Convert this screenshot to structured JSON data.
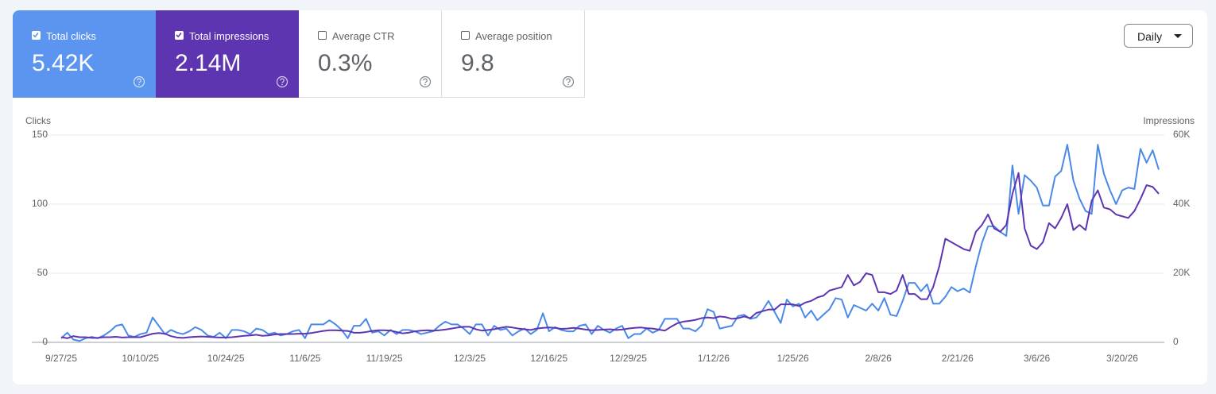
{
  "metrics": [
    {
      "value": "5.42K",
      "checked": true,
      "color": "#5b95f0"
    },
    {
      "value": "2.14M",
      "checked": true,
      "color": "#5e35b1"
    },
    {
      "label": "Average CTR",
      "value": "0.3%",
      "checked": false
    },
    {
      "label": "Average position",
      "value": "9.8",
      "checked": false
    }
  ],
  "granularity": "Daily",
  "chart_data": {
    "type": "line",
    "y_label": "Clicks",
    "y2_label": "Impressions",
    "grid": true,
    "ylim": [
      0,
      150
    ],
    "yticks": [
      0,
      50,
      100,
      150
    ],
    "y2lim": [
      0,
      60000
    ],
    "y2ticks": [
      0,
      {
        "value": 20000,
        "label": "20K"
      },
      {
        "value": 40000,
        "label": "40K"
      },
      {
        "value": 60000,
        "label": "60K"
      }
    ],
    "categories": [
      "9/27/25",
      null,
      null,
      null,
      null,
      null,
      null,
      null,
      null,
      null,
      null,
      null,
      null,
      "10/10/25",
      null,
      null,
      null,
      null,
      null,
      null,
      null,
      null,
      null,
      null,
      null,
      null,
      null,
      "10/24/25",
      null,
      null,
      null,
      null,
      null,
      null,
      null,
      null,
      null,
      null,
      null,
      null,
      "11/6/25",
      null,
      null,
      null,
      null,
      null,
      null,
      null,
      null,
      null,
      null,
      null,
      null,
      "11/19/25",
      null,
      null,
      null,
      null,
      null,
      null,
      null,
      null,
      null,
      null,
      null,
      null,
      null,
      "12/3/25",
      null,
      null,
      null,
      null,
      null,
      null,
      null,
      null,
      null,
      null,
      null,
      null,
      "12/16/25",
      null,
      null,
      null,
      null,
      null,
      null,
      null,
      null,
      null,
      null,
      null,
      null,
      "12/29/25",
      null,
      null,
      null,
      null,
      null,
      null,
      null,
      null,
      null,
      null,
      null,
      null,
      null,
      "1/12/26",
      null,
      null,
      null,
      null,
      null,
      null,
      null,
      null,
      null,
      null,
      null,
      null,
      "1/25/26",
      null,
      null,
      null,
      null,
      null,
      null,
      null,
      null,
      null,
      null,
      null,
      null,
      null,
      "2/8/26",
      null,
      null,
      null,
      null,
      null,
      null,
      null,
      null,
      null,
      null,
      null,
      null,
      "2/21/26",
      null,
      null,
      null,
      null,
      null,
      null,
      null,
      null,
      null,
      null,
      null,
      null,
      "3/6/26",
      null,
      null,
      null,
      null,
      null,
      null,
      null,
      null,
      null,
      null,
      null,
      null,
      null,
      "3/20/26",
      null,
      null,
      null,
      null,
      null,
      null
    ],
    "series": [
      {
        "name": "Total clicks",
        "color": "#4a89e8",
        "axis": "y",
        "values": [
          3,
          7,
          2,
          1,
          3,
          4,
          3,
          5,
          8,
          12,
          13,
          5,
          4,
          6,
          7,
          18,
          12,
          6,
          9,
          7,
          6,
          8,
          11,
          9,
          5,
          4,
          7,
          3,
          9,
          9,
          8,
          6,
          10,
          9,
          6,
          7,
          5,
          6,
          8,
          9,
          3,
          13,
          13,
          13,
          16,
          13,
          9,
          3,
          12,
          12,
          17,
          7,
          8,
          5,
          9,
          6,
          9,
          9,
          8,
          6,
          7,
          8,
          12,
          15,
          13,
          13,
          10,
          6,
          13,
          13,
          5,
          12,
          9,
          10,
          5,
          8,
          10,
          6,
          9,
          21,
          8,
          11,
          9,
          8,
          8,
          12,
          13,
          6,
          12,
          9,
          7,
          10,
          12,
          3,
          6,
          6,
          10,
          7,
          9,
          17,
          17,
          17,
          10,
          10,
          8,
          12,
          24,
          22,
          10,
          11,
          12,
          19,
          20,
          17,
          18,
          23,
          30,
          22,
          14,
          31,
          26,
          28,
          18,
          23,
          16,
          20,
          24,
          32,
          31,
          18,
          27,
          25,
          23,
          28,
          23,
          32,
          20,
          19,
          30,
          43,
          43,
          37,
          42,
          28,
          28,
          33,
          40,
          37,
          39,
          36,
          55,
          72,
          84,
          84,
          80,
          77,
          128,
          93,
          121,
          117,
          112,
          99,
          99,
          120,
          124,
          143,
          117,
          104,
          95,
          93,
          143,
          122,
          110,
          100,
          110,
          112,
          111,
          140,
          130,
          139,
          125
        ]
      },
      {
        "name": "Total impressions",
        "color": "#5e35b1",
        "axis": "y2",
        "values": [
          1500,
          1200,
          1800,
          1500,
          1500,
          1300,
          1300,
          1500,
          1500,
          1600,
          1400,
          1500,
          1500,
          1500,
          2000,
          2500,
          2700,
          2500,
          1800,
          1400,
          1300,
          1500,
          1600,
          1700,
          1600,
          1500,
          1400,
          1400,
          1500,
          1700,
          1900,
          2000,
          2200,
          1900,
          2000,
          2300,
          2400,
          2400,
          2400,
          2500,
          2500,
          2700,
          3000,
          3300,
          3500,
          3500,
          3400,
          3300,
          2800,
          2800,
          3000,
          3300,
          3500,
          3500,
          3400,
          3000,
          2600,
          2800,
          3200,
          3400,
          3500,
          3400,
          3500,
          3700,
          4000,
          4300,
          4500,
          4500,
          3800,
          3400,
          3600,
          3800,
          4200,
          4500,
          4300,
          4000,
          3800,
          3600,
          4000,
          4200,
          4300,
          4200,
          3900,
          4000,
          4200,
          4000,
          3700,
          3500,
          3600,
          3700,
          3800,
          3600,
          3700,
          4000,
          4200,
          4300,
          4100,
          4000,
          3700,
          3400,
          4500,
          5500,
          6000,
          6200,
          6500,
          7000,
          7200,
          7000,
          7500,
          7300,
          6800,
          7000,
          7500,
          7000,
          8500,
          9000,
          9500,
          9500,
          11000,
          11000,
          11000,
          10500,
          11500,
          12000,
          13000,
          13500,
          15000,
          15500,
          16000,
          19500,
          16500,
          17500,
          20000,
          19500,
          14500,
          14500,
          14000,
          15000,
          19500,
          14000,
          14000,
          12500,
          12500,
          16000,
          22000,
          30000,
          29000,
          28000,
          27000,
          26500,
          32000,
          34000,
          37000,
          33000,
          32000,
          34000,
          43000,
          49000,
          33000,
          28000,
          27000,
          29000,
          34500,
          33000,
          36000,
          40000,
          32500,
          34000,
          32500,
          41000,
          44000,
          39000,
          38500,
          37000,
          36500,
          36000,
          38000,
          41500,
          45500,
          45000,
          43000
        ]
      }
    ]
  }
}
